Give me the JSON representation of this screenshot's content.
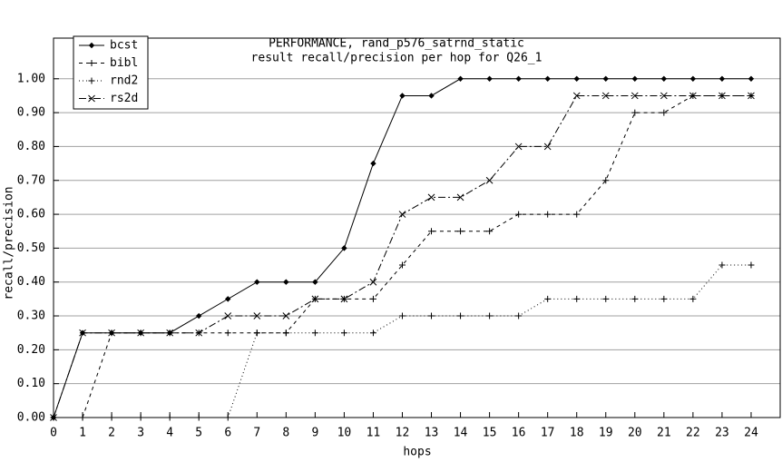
{
  "chart_data": {
    "type": "line",
    "title": "PERFORMANCE, rand_p576_satrnd_static",
    "subtitle": "result recall/precision per hop for Q26_1",
    "x_label": "hops",
    "y_label": "recall/precision",
    "x": [
      0,
      1,
      2,
      3,
      4,
      5,
      6,
      7,
      8,
      9,
      10,
      11,
      12,
      13,
      14,
      15,
      16,
      17,
      18,
      19,
      20,
      21,
      22,
      23,
      24
    ],
    "series": [
      {
        "name": "bcst",
        "color": "#000000",
        "marker": "dot",
        "line_style": "solid",
        "values": [
          0,
          0.25,
          0.25,
          0.25,
          0.25,
          0.3,
          0.35,
          0.4,
          0.4,
          0.4,
          0.5,
          0.75,
          0.95,
          0.95,
          1.0,
          1.0,
          1.0,
          1.0,
          1.0,
          1.0,
          1.0,
          1.0,
          1.0,
          1.0,
          1.0
        ]
      },
      {
        "name": "bibl",
        "color": "#000000",
        "marker": "plus",
        "line_style": "dashed",
        "values": [
          0,
          0,
          0.25,
          0.25,
          0.25,
          0.25,
          0.25,
          0.25,
          0.25,
          0.35,
          0.35,
          0.35,
          0.45,
          0.55,
          0.55,
          0.55,
          0.6,
          0.6,
          0.6,
          0.7,
          0.9,
          0.9,
          0.95,
          0.95,
          0.95
        ]
      },
      {
        "name": "rnd2",
        "color": "#000000",
        "marker": "plus",
        "line_style": "dotted",
        "values": [
          0,
          0,
          0,
          0,
          0,
          0,
          0,
          0.25,
          0.25,
          0.25,
          0.25,
          0.25,
          0.3,
          0.3,
          0.3,
          0.3,
          0.3,
          0.35,
          0.35,
          0.35,
          0.35,
          0.35,
          0.35,
          0.45,
          0.45
        ]
      },
      {
        "name": "rs2d",
        "color": "#000000",
        "marker": "cross",
        "line_style": "dashdot",
        "values": [
          0,
          0.25,
          0.25,
          0.25,
          0.25,
          0.25,
          0.3,
          0.3,
          0.3,
          0.35,
          0.35,
          0.4,
          0.6,
          0.65,
          0.65,
          0.7,
          0.8,
          0.8,
          0.95,
          0.95,
          0.95,
          0.95,
          0.95,
          0.95,
          0.95
        ]
      }
    ],
    "xlim": [
      0,
      25
    ],
    "ylim": [
      0,
      1.12
    ],
    "xticks": [
      0,
      1,
      2,
      3,
      4,
      5,
      6,
      7,
      8,
      9,
      10,
      11,
      12,
      13,
      14,
      15,
      16,
      17,
      18,
      19,
      20,
      21,
      22,
      23,
      24
    ],
    "yticks": [
      {
        "value": 0,
        "label": "0.00"
      },
      {
        "value": 0.1,
        "label": "0.10"
      },
      {
        "value": 0.2,
        "label": "0.20"
      },
      {
        "value": 0.3,
        "label": "0.30"
      },
      {
        "value": 0.4,
        "label": "0.40"
      },
      {
        "value": 0.5,
        "label": "0.50"
      },
      {
        "value": 0.6,
        "label": "0.60"
      },
      {
        "value": 0.7,
        "label": "0.70"
      },
      {
        "value": 0.8,
        "label": "0.80"
      },
      {
        "value": 0.9,
        "label": "0.90"
      },
      {
        "value": 1.0,
        "label": "1.00"
      }
    ],
    "grid": true,
    "legend": "top-left"
  }
}
